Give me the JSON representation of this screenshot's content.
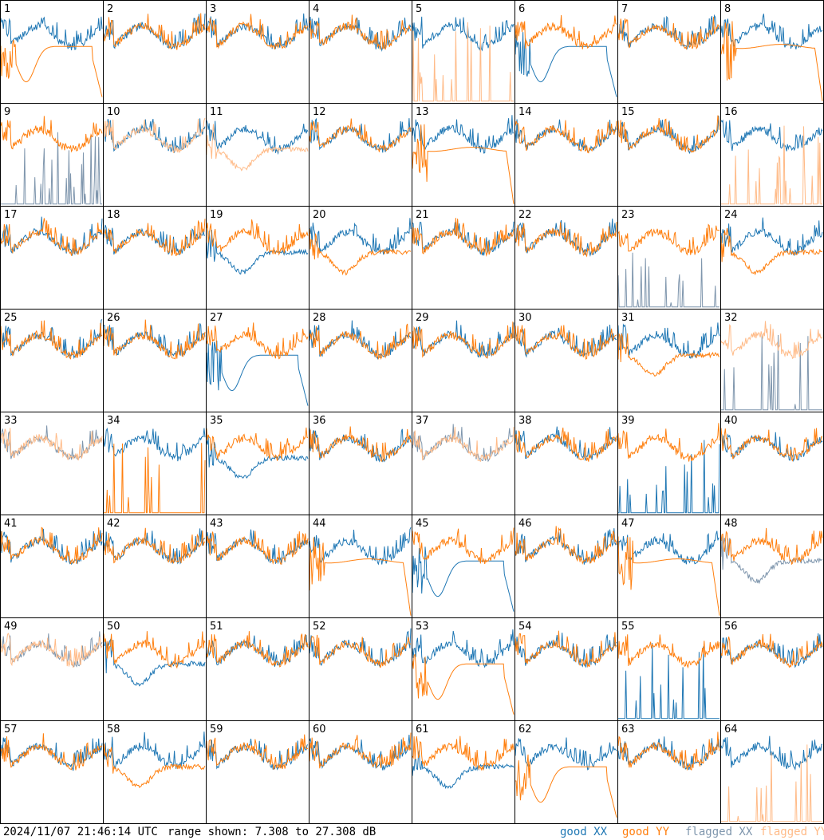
{
  "footer": {
    "timestamp": "2024/11/07 21:46:14 UTC",
    "range_text": "range shown: 7.308 to 27.308 dB"
  },
  "legend": {
    "good_xx": "good XX",
    "good_yy": "good YY",
    "flagged_xx": "flagged XX",
    "flagged_yy": "flagged YY"
  },
  "colors": {
    "good_xx": "#1f77b4",
    "good_yy": "#ff7f0e",
    "flagged_xx": "#7f96ad",
    "flagged_yy": "#ffbb88",
    "border": "#000000"
  },
  "chart_data": {
    "type": "line",
    "layout": "8x8 small multiples",
    "ylim": [
      7.308,
      27.308
    ],
    "y_unit": "dB",
    "tiles": [
      {
        "id": "1",
        "xx": "good",
        "yy": "good",
        "xx_shape": "normal",
        "yy_shape": "dip"
      },
      {
        "id": "2",
        "xx": "good",
        "yy": "good",
        "xx_shape": "normal",
        "yy_shape": "normal"
      },
      {
        "id": "3",
        "xx": "good",
        "yy": "good",
        "xx_shape": "normal",
        "yy_shape": "normal"
      },
      {
        "id": "4",
        "xx": "good",
        "yy": "good",
        "xx_shape": "normal",
        "yy_shape": "normal"
      },
      {
        "id": "5",
        "xx": "good",
        "yy": "flagged",
        "xx_shape": "normal",
        "yy_shape": "spikes"
      },
      {
        "id": "6",
        "xx": "good",
        "yy": "good",
        "xx_shape": "dip",
        "yy_shape": "normal"
      },
      {
        "id": "7",
        "xx": "good",
        "yy": "good",
        "xx_shape": "normal",
        "yy_shape": "normal"
      },
      {
        "id": "8",
        "xx": "good",
        "yy": "good",
        "xx_shape": "normal",
        "yy_shape": "flat"
      },
      {
        "id": "9",
        "xx": "flagged",
        "yy": "good",
        "xx_shape": "spikes",
        "yy_shape": "normal"
      },
      {
        "id": "10",
        "xx": "good",
        "yy": "flagged",
        "xx_shape": "normal",
        "yy_shape": "normal"
      },
      {
        "id": "11",
        "xx": "good",
        "yy": "flagged",
        "xx_shape": "normal",
        "yy_shape": "lowmid"
      },
      {
        "id": "12",
        "xx": "good",
        "yy": "good",
        "xx_shape": "normal",
        "yy_shape": "normal"
      },
      {
        "id": "13",
        "xx": "good",
        "yy": "good",
        "xx_shape": "normal",
        "yy_shape": "flat"
      },
      {
        "id": "14",
        "xx": "good",
        "yy": "good",
        "xx_shape": "normal",
        "yy_shape": "normal"
      },
      {
        "id": "15",
        "xx": "good",
        "yy": "good",
        "xx_shape": "normal",
        "yy_shape": "normal"
      },
      {
        "id": "16",
        "xx": "good",
        "yy": "flagged",
        "xx_shape": "normal",
        "yy_shape": "spikes"
      },
      {
        "id": "17",
        "xx": "good",
        "yy": "good",
        "xx_shape": "normal",
        "yy_shape": "normal"
      },
      {
        "id": "18",
        "xx": "good",
        "yy": "good",
        "xx_shape": "normal",
        "yy_shape": "normal"
      },
      {
        "id": "19",
        "xx": "good",
        "yy": "good",
        "xx_shape": "lowmid",
        "yy_shape": "normal"
      },
      {
        "id": "20",
        "xx": "good",
        "yy": "good",
        "xx_shape": "normal",
        "yy_shape": "lowmid"
      },
      {
        "id": "21",
        "xx": "good",
        "yy": "good",
        "xx_shape": "normal",
        "yy_shape": "normal"
      },
      {
        "id": "22",
        "xx": "good",
        "yy": "good",
        "xx_shape": "normal",
        "yy_shape": "normal"
      },
      {
        "id": "23",
        "xx": "flagged",
        "yy": "good",
        "xx_shape": "spikes",
        "yy_shape": "normal"
      },
      {
        "id": "24",
        "xx": "good",
        "yy": "good",
        "xx_shape": "normal",
        "yy_shape": "lowmid"
      },
      {
        "id": "25",
        "xx": "good",
        "yy": "good",
        "xx_shape": "normal",
        "yy_shape": "normal"
      },
      {
        "id": "26",
        "xx": "good",
        "yy": "good",
        "xx_shape": "normal",
        "yy_shape": "normal"
      },
      {
        "id": "27",
        "xx": "good",
        "yy": "good",
        "xx_shape": "dip",
        "yy_shape": "normal"
      },
      {
        "id": "28",
        "xx": "good",
        "yy": "good",
        "xx_shape": "normal",
        "yy_shape": "normal"
      },
      {
        "id": "29",
        "xx": "good",
        "yy": "good",
        "xx_shape": "normal",
        "yy_shape": "normal"
      },
      {
        "id": "30",
        "xx": "good",
        "yy": "good",
        "xx_shape": "normal",
        "yy_shape": "normal"
      },
      {
        "id": "31",
        "xx": "good",
        "yy": "good",
        "xx_shape": "normal",
        "yy_shape": "lowmid"
      },
      {
        "id": "32",
        "xx": "flagged",
        "yy": "flagged",
        "xx_shape": "spikes",
        "yy_shape": "normal"
      },
      {
        "id": "33",
        "xx": "flagged",
        "yy": "flagged",
        "xx_shape": "normal",
        "yy_shape": "normal"
      },
      {
        "id": "34",
        "xx": "good",
        "yy": "good",
        "xx_shape": "normal",
        "yy_shape": "spikes"
      },
      {
        "id": "35",
        "xx": "good",
        "yy": "good",
        "xx_shape": "lowmid",
        "yy_shape": "normal"
      },
      {
        "id": "36",
        "xx": "good",
        "yy": "good",
        "xx_shape": "normal",
        "yy_shape": "normal"
      },
      {
        "id": "37",
        "xx": "flagged",
        "yy": "flagged",
        "xx_shape": "normal",
        "yy_shape": "normal"
      },
      {
        "id": "38",
        "xx": "good",
        "yy": "good",
        "xx_shape": "normal",
        "yy_shape": "normal"
      },
      {
        "id": "39",
        "xx": "good",
        "yy": "good",
        "xx_shape": "spikes",
        "yy_shape": "normal"
      },
      {
        "id": "40",
        "xx": "good",
        "yy": "good",
        "xx_shape": "normal",
        "yy_shape": "normal"
      },
      {
        "id": "41",
        "xx": "good",
        "yy": "good",
        "xx_shape": "normal",
        "yy_shape": "normal"
      },
      {
        "id": "42",
        "xx": "good",
        "yy": "good",
        "xx_shape": "normal",
        "yy_shape": "normal"
      },
      {
        "id": "43",
        "xx": "good",
        "yy": "good",
        "xx_shape": "normal",
        "yy_shape": "normal"
      },
      {
        "id": "44",
        "xx": "good",
        "yy": "good",
        "xx_shape": "normal",
        "yy_shape": "flat"
      },
      {
        "id": "45",
        "xx": "good",
        "yy": "good",
        "xx_shape": "dip",
        "yy_shape": "normal"
      },
      {
        "id": "46",
        "xx": "good",
        "yy": "good",
        "xx_shape": "normal",
        "yy_shape": "normal"
      },
      {
        "id": "47",
        "xx": "good",
        "yy": "good",
        "xx_shape": "normal",
        "yy_shape": "flat"
      },
      {
        "id": "48",
        "xx": "flagged",
        "yy": "good",
        "xx_shape": "lowmid",
        "yy_shape": "normal"
      },
      {
        "id": "49",
        "xx": "flagged",
        "yy": "flagged",
        "xx_shape": "normal",
        "yy_shape": "normal"
      },
      {
        "id": "50",
        "xx": "good",
        "yy": "good",
        "xx_shape": "lowmid",
        "yy_shape": "normal"
      },
      {
        "id": "51",
        "xx": "good",
        "yy": "good",
        "xx_shape": "normal",
        "yy_shape": "normal"
      },
      {
        "id": "52",
        "xx": "good",
        "yy": "good",
        "xx_shape": "normal",
        "yy_shape": "normal"
      },
      {
        "id": "53",
        "xx": "good",
        "yy": "good",
        "xx_shape": "normal",
        "yy_shape": "dip"
      },
      {
        "id": "54",
        "xx": "good",
        "yy": "good",
        "xx_shape": "normal",
        "yy_shape": "normal"
      },
      {
        "id": "55",
        "xx": "good",
        "yy": "good",
        "xx_shape": "spikes",
        "yy_shape": "normal"
      },
      {
        "id": "56",
        "xx": "good",
        "yy": "good",
        "xx_shape": "normal",
        "yy_shape": "normal"
      },
      {
        "id": "57",
        "xx": "good",
        "yy": "good",
        "xx_shape": "normal",
        "yy_shape": "normal"
      },
      {
        "id": "58",
        "xx": "good",
        "yy": "good",
        "xx_shape": "normal",
        "yy_shape": "lowmid"
      },
      {
        "id": "59",
        "xx": "good",
        "yy": "good",
        "xx_shape": "normal",
        "yy_shape": "normal"
      },
      {
        "id": "60",
        "xx": "good",
        "yy": "good",
        "xx_shape": "normal",
        "yy_shape": "normal"
      },
      {
        "id": "61",
        "xx": "good",
        "yy": "good",
        "xx_shape": "lowmid",
        "yy_shape": "normal"
      },
      {
        "id": "62",
        "xx": "good",
        "yy": "good",
        "xx_shape": "normal",
        "yy_shape": "dip"
      },
      {
        "id": "63",
        "xx": "good",
        "yy": "good",
        "xx_shape": "normal",
        "yy_shape": "normal"
      },
      {
        "id": "64",
        "xx": "good",
        "yy": "flagged",
        "xx_shape": "normal",
        "yy_shape": "spikes"
      }
    ]
  }
}
